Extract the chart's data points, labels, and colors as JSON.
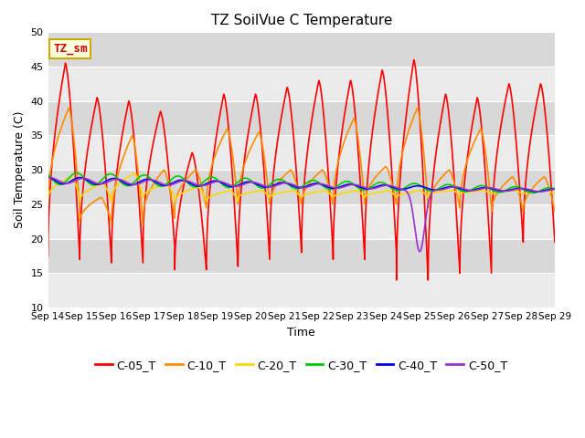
{
  "title": "TZ SoilVue C Temperature",
  "xlabel": "Time",
  "ylabel": "Soil Temperature (C)",
  "ylim": [
    10,
    50
  ],
  "yticks": [
    10,
    15,
    20,
    25,
    30,
    35,
    40,
    45,
    50
  ],
  "xtick_labels": [
    "Sep 14",
    "Sep 15",
    "Sep 16",
    "Sep 17",
    "Sep 18",
    "Sep 19",
    "Sep 20",
    "Sep 21",
    "Sep 22",
    "Sep 23",
    "Sep 24",
    "Sep 25",
    "Sep 26",
    "Sep 27",
    "Sep 28",
    "Sep 29"
  ],
  "series": {
    "C-05_T": {
      "color": "#FF0000",
      "lw": 1.2
    },
    "C-10_T": {
      "color": "#FF8C00",
      "lw": 1.2
    },
    "C-20_T": {
      "color": "#FFD700",
      "lw": 1.2
    },
    "C-30_T": {
      "color": "#00CC00",
      "lw": 1.2
    },
    "C-40_T": {
      "color": "#0000EE",
      "lw": 1.2
    },
    "C-50_T": {
      "color": "#9933CC",
      "lw": 1.2
    }
  },
  "legend_label": "TZ_sm",
  "legend_box_facecolor": "#FFFFE0",
  "legend_box_edgecolor": "#CCAA00",
  "bg_light": "#EBEBEB",
  "bg_dark": "#D8D8D8",
  "n_days": 15,
  "pts_per_day": 288
}
